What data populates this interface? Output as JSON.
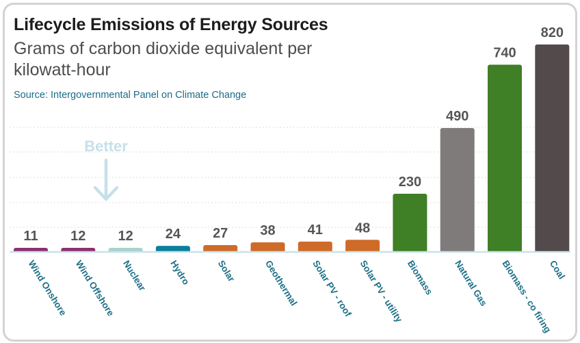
{
  "title": "Lifecycle Emissions of Energy Sources",
  "subtitle": "Grams of carbon dioxide equivalent per kilowatt-hour",
  "source": "Source: Intergovernmental Panel on Climate Change",
  "annotation": {
    "text": "Better",
    "icon": "down-arrow-icon"
  },
  "chart_data": {
    "type": "bar",
    "title": "Lifecycle Emissions of Energy Sources",
    "subtitle": "Grams of carbon dioxide equivalent per kilowatt-hour",
    "categories": [
      "Wind Onshore",
      "Wind Offshore",
      "Nuclear",
      "Hydro",
      "Solar",
      "Geothermal",
      "Solar PV - roof",
      "Solar PV - utility",
      "Biomass",
      "Natural Gas",
      "Biomass - co firing",
      "Coal"
    ],
    "values": [
      11,
      12,
      12,
      24,
      27,
      38,
      41,
      48,
      230,
      490,
      740,
      820
    ],
    "colors": [
      "#8e2f6e",
      "#8e2f6e",
      "#a7d3cc",
      "#0e7f9b",
      "#cf6b28",
      "#cf6b28",
      "#cf6b28",
      "#cf6b28",
      "#3f7f26",
      "#807b7b",
      "#3f7f26",
      "#534b4b"
    ],
    "data_label_color": "#555555",
    "category_label_color": "#1d6f86",
    "ylim": [
      0,
      820
    ],
    "grid": true,
    "gridline_color": "#dddddd",
    "legend": "none"
  }
}
